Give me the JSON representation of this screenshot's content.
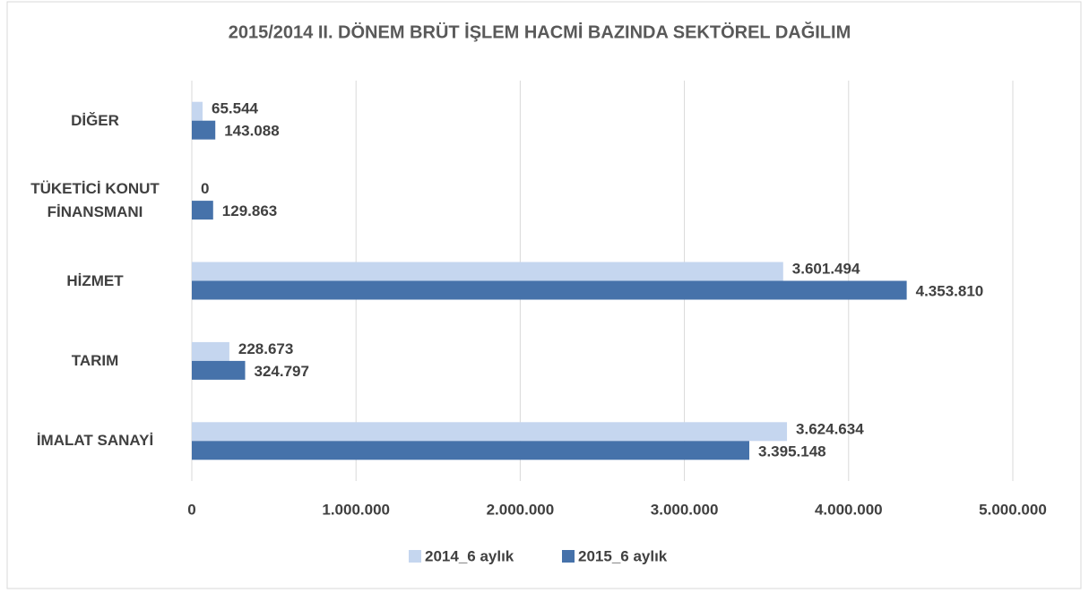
{
  "chart_data": {
    "type": "hbar",
    "title": "2015/2014 II. DÖNEM BRÜT İŞLEM HACMİ BAZINDA SEKTÖREL DAĞILIM",
    "categories": [
      "DİĞER",
      "TÜKETİCİ KONUT FİNANSMANI",
      "HİZMET",
      "TARIM",
      "İMALAT SANAYİ"
    ],
    "series": [
      {
        "name": "2014_6 aylık",
        "color": "#c5d6ef",
        "values": [
          65544,
          0,
          3601494,
          228673,
          3624634
        ],
        "value_labels": [
          "65.544",
          "0",
          "3.601.494",
          "228.673",
          "3.624.634"
        ]
      },
      {
        "name": "2015_6 aylık",
        "color": "#4672aa",
        "values": [
          143088,
          129863,
          4353810,
          324797,
          3395148
        ],
        "value_labels": [
          "143.088",
          "129.863",
          "4.353.810",
          "324.797",
          "3.395.148"
        ]
      }
    ],
    "xlim": [
      0,
      5000000
    ],
    "xticks": [
      0,
      {
        "value": 1000000,
        "label": "1.000.000"
      },
      {
        "value": 2000000,
        "label": "2.000.000"
      },
      {
        "value": 3000000,
        "label": "3.000.000"
      },
      {
        "value": 4000000,
        "label": "4.000.000"
      },
      {
        "value": 5000000,
        "label": "5.000.000"
      }
    ],
    "grid": true,
    "legend": "bottom"
  }
}
